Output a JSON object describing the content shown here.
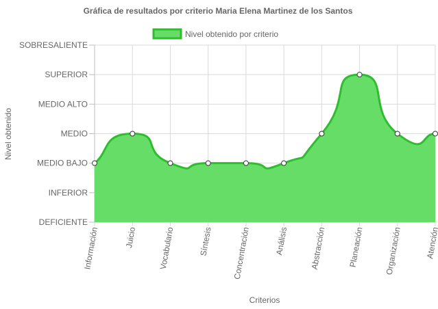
{
  "chart_data": {
    "type": "area",
    "title": "Gráfica de resultados por criterio Maria Elena Martinez de los Santos",
    "xlabel": "Criterios",
    "ylabel": "Nivel obtenido",
    "y_levels": [
      "DEFICIENTE",
      "INFERIOR",
      "MEDIO BAJO",
      "MEDIO",
      "MEDIO ALTO",
      "SUPERIOR",
      "SOBRESALIENTE"
    ],
    "categories": [
      "Información",
      "Juicio",
      "Vocabulario",
      "Síntesis",
      "Concentración",
      "Análisis",
      "Abstracción",
      "Planeación",
      "Organización",
      "Atención"
    ],
    "series": [
      {
        "name": "Nivel obtenido por criterio",
        "values": [
          "MEDIO BAJO",
          "MEDIO",
          "MEDIO BAJO",
          "MEDIO BAJO",
          "MEDIO BAJO",
          "MEDIO BAJO",
          "MEDIO",
          "SUPERIOR",
          "MEDIO",
          "MEDIO"
        ],
        "fill_color": "#66dd66",
        "line_color": "#2ebd2e"
      }
    ],
    "grid": true,
    "legend_position": "top"
  }
}
